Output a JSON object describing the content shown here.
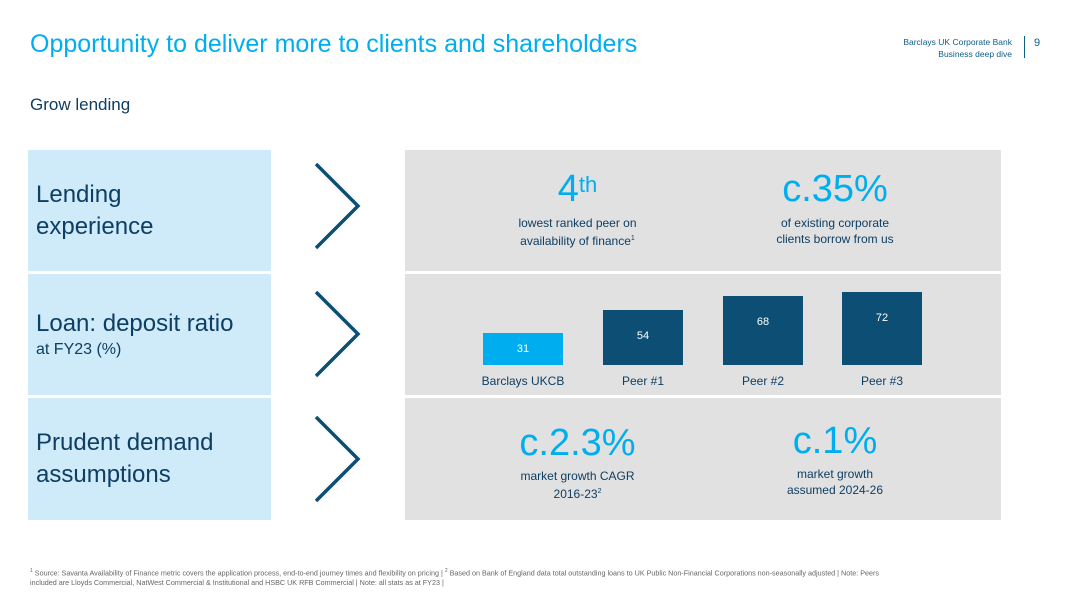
{
  "header": {
    "title": "Opportunity to deliver more to clients and shareholders",
    "org_line1": "Barclays UK Corporate Bank",
    "org_line2": "Business deep dive",
    "page_number": "9"
  },
  "subtitle": "Grow lending",
  "rows": [
    {
      "label": "Lending experience",
      "stats": [
        {
          "value": "4",
          "value_sup": "th",
          "desc_line1": "lowest ranked peer on",
          "desc_line2": "availability of finance",
          "desc_sup": "1"
        },
        {
          "value": "c.35%",
          "desc_line1": "of existing corporate",
          "desc_line2": "clients borrow from us"
        }
      ]
    },
    {
      "label": "Loan: deposit ratio",
      "sublabel": "at FY23 (%)"
    },
    {
      "label": "Prudent demand assumptions",
      "stats": [
        {
          "value": "c.2.3%",
          "desc_line1": "market growth CAGR",
          "desc_line2": "2016-23",
          "desc_sup": "2"
        },
        {
          "value": "c.1%",
          "desc_line1": "market growth",
          "desc_line2": "assumed 2024-26"
        }
      ]
    }
  ],
  "chart_data": {
    "type": "bar",
    "categories": [
      "Barclays UKCB",
      "Peer #1",
      "Peer #2",
      "Peer #3"
    ],
    "values": [
      31,
      54,
      68,
      72
    ],
    "value_labels": [
      "31",
      "54",
      "68",
      "72"
    ],
    "colors": [
      "#00aeef",
      "#0d4f74",
      "#0d4f74",
      "#0d4f74"
    ]
  },
  "footnote": {
    "line1_a": "Source: Savanta Availability of Finance metric covers the application process, end-to-end journey times and flexibility on pricing | ",
    "line1_b": "Based on Bank of England data total outstanding loans to UK Public Non-Financial Corporations non-seasonally adjusted | Note: Peers",
    "line2": "included are Lloyds Commercial, NatWest Commercial & Institutional and HSBC UK RFB Commercial | Note: all stats as at FY23 |",
    "sup1": "1",
    "sup2": "2"
  },
  "colors": {
    "accent": "#00aeef",
    "dark": "#0d3e63",
    "light_panel": "#cfeaf8",
    "grey_panel": "#e1e1e1"
  }
}
